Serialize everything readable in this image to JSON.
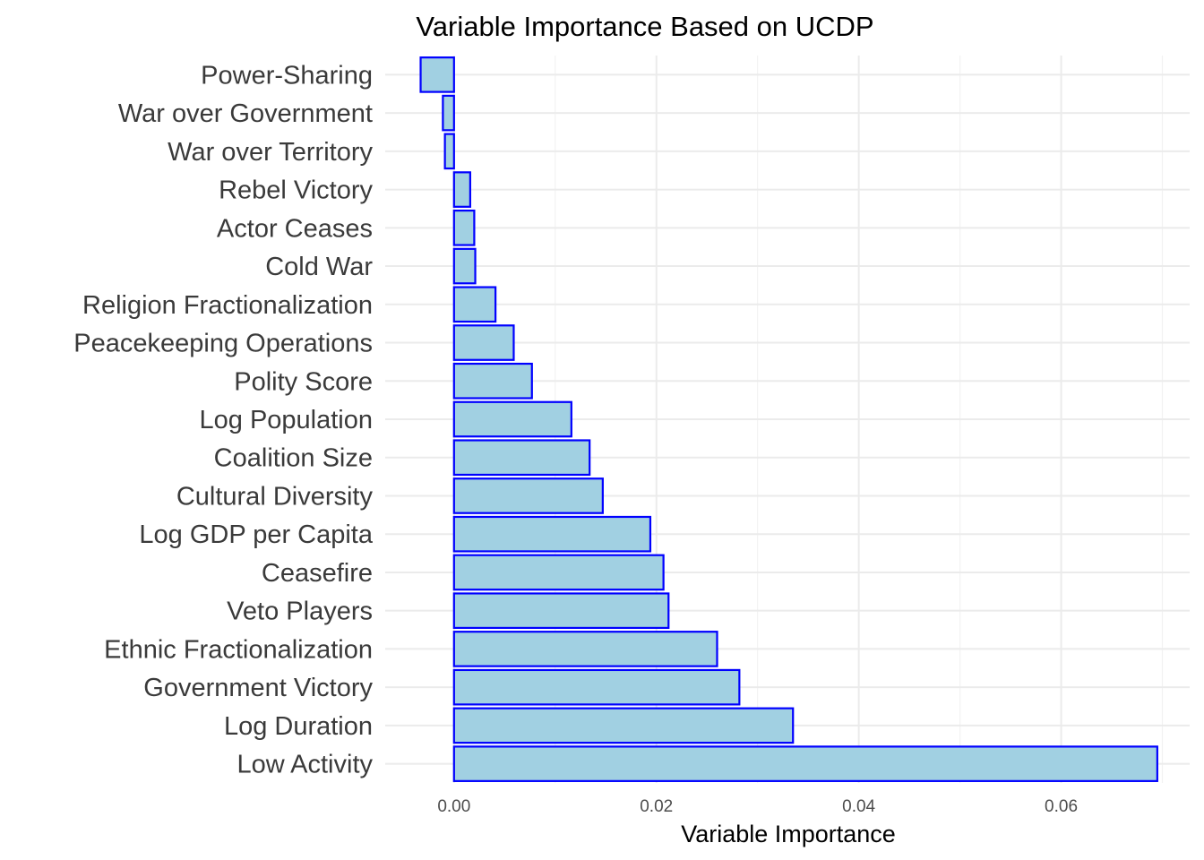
{
  "chart_data": {
    "type": "bar",
    "orientation": "horizontal",
    "title": "Variable Importance Based on UCDP",
    "xlabel": "Variable Importance",
    "ylabel": "",
    "xlim": [
      -0.0068,
      0.0727
    ],
    "x_ticks": [
      0.0,
      0.02,
      0.04,
      0.06
    ],
    "x_tick_labels": [
      "0.00",
      "0.02",
      "0.04",
      "0.06"
    ],
    "grid": true,
    "legend": "none",
    "bar_fill": "#a1d0e2",
    "bar_stroke": "#0000ff",
    "categories": [
      "Power-Sharing",
      "War over Government",
      "War over Territory",
      "Rebel Victory",
      "Actor Ceases",
      "Cold War",
      "Religion Fractionalization",
      "Peacekeeping Operations",
      "Polity Score",
      "Log Population",
      "Coalition Size",
      "Cultural Diversity",
      "Log GDP per Capita",
      "Ceasefire",
      "Veto Players",
      "Ethnic Fractionalization",
      "Government Victory",
      "Log Duration",
      "Low Activity"
    ],
    "values": [
      -0.0033,
      -0.0011,
      -0.0009,
      0.0016,
      0.002,
      0.0021,
      0.0041,
      0.0059,
      0.0077,
      0.0116,
      0.0134,
      0.0147,
      0.0194,
      0.0207,
      0.0212,
      0.026,
      0.0282,
      0.0335,
      0.0695
    ]
  }
}
